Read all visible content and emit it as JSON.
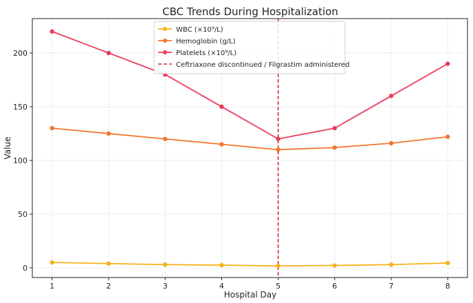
{
  "chart_data": {
    "type": "line",
    "title": "CBC Trends During Hospitalization",
    "xlabel": "Hospital Day",
    "ylabel": "Value",
    "x": [
      1,
      2,
      3,
      4,
      5,
      6,
      7,
      8
    ],
    "xlim": [
      0.65,
      8.35
    ],
    "ylim": [
      -9,
      232
    ],
    "yticks": [
      0,
      50,
      100,
      150,
      200
    ],
    "grid": true,
    "legend_position": "top-center",
    "series": [
      {
        "name": "WBC (×10⁹/L)",
        "color": "#f5b21a",
        "values": [
          5.0,
          4.0,
          3.0,
          2.5,
          1.8,
          2.2,
          3.0,
          4.5
        ]
      },
      {
        "name": "Hemoglobin (g/L)",
        "color": "#f2762e",
        "values": [
          130,
          125,
          120,
          115,
          110,
          112,
          116,
          122
        ]
      },
      {
        "name": "Platelets (×10⁹/L)",
        "color": "#ea3b5a",
        "values": [
          220,
          200,
          180,
          150,
          120,
          130,
          160,
          190
        ]
      }
    ],
    "annotations": [
      {
        "type": "vline",
        "x": 5,
        "color": "#d62728",
        "style": "dashed",
        "label": "Ceftriaxone discontinued / Filgrastim administered"
      }
    ]
  }
}
